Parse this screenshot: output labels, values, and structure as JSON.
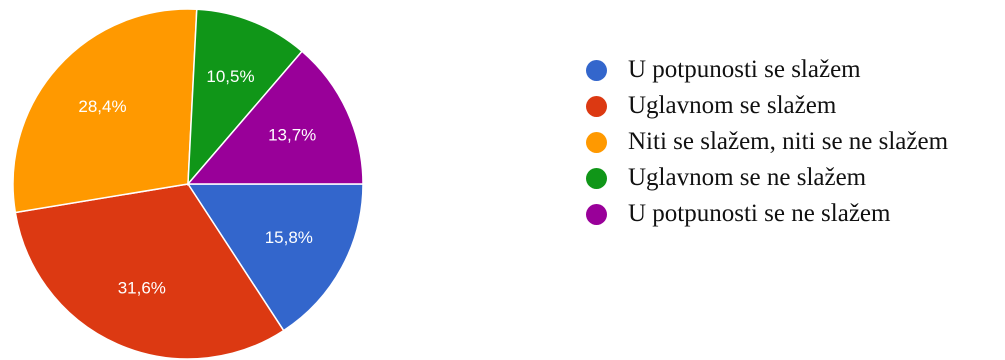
{
  "chart_data": {
    "type": "pie",
    "title": "",
    "legend_position": "right",
    "slices": [
      {
        "label": "U potpunosti se slažem",
        "value": 15.8,
        "display": "15,8%",
        "color": "#3366cc"
      },
      {
        "label": "Uglavnom se slažem",
        "value": 31.6,
        "display": "31,6%",
        "color": "#dc3912"
      },
      {
        "label": "Niti se slažem, niti se ne slažem",
        "value": 28.4,
        "display": "28,4%",
        "color": "#ff9900"
      },
      {
        "label": "Uglavnom se ne slažem",
        "value": 10.5,
        "display": "10,5%",
        "color": "#109618"
      },
      {
        "label": "U potpunosti se ne slažem",
        "value": 13.7,
        "display": "13,7%",
        "color": "#990099"
      }
    ]
  }
}
